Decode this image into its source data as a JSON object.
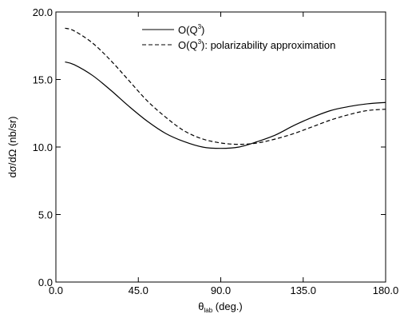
{
  "chart_data": {
    "type": "line",
    "xlabel_main": "θ",
    "xlabel_sub": "lab",
    "xlabel_rest": " (deg.)",
    "ylabel": "dσ/dΩ (nb/sr)",
    "xlim": [
      0,
      180
    ],
    "ylim": [
      0,
      20
    ],
    "x_ticks": [
      0,
      45,
      90,
      135,
      180
    ],
    "x_tick_labels": [
      "0.0",
      "45.0",
      "90.0",
      "135.0",
      "180.0"
    ],
    "y_ticks": [
      0,
      5,
      10,
      15,
      20
    ],
    "y_tick_labels": [
      "0.0",
      "5.0",
      "10.0",
      "15.0",
      "20.0"
    ],
    "grid": false,
    "legend_position": "top-right",
    "series": [
      {
        "name_main": "O(Q",
        "name_sup": "3",
        "name_rest": ")",
        "style": "solid",
        "color": "#000000",
        "x": [
          5,
          10,
          20,
          30,
          40,
          50,
          60,
          70,
          80,
          90,
          100,
          110,
          120,
          130,
          140,
          150,
          160,
          170,
          180
        ],
        "y": [
          16.3,
          16.1,
          15.3,
          14.2,
          13.0,
          11.9,
          11.0,
          10.4,
          10.0,
          9.9,
          10.0,
          10.4,
          10.9,
          11.6,
          12.2,
          12.7,
          13.0,
          13.2,
          13.3
        ]
      },
      {
        "name_main": "O(Q",
        "name_sup": "3",
        "name_rest": "): polarizability approximation",
        "style": "dashed",
        "color": "#000000",
        "x": [
          5,
          10,
          20,
          30,
          40,
          50,
          60,
          70,
          80,
          90,
          100,
          110,
          120,
          130,
          140,
          150,
          160,
          170,
          180
        ],
        "y": [
          18.8,
          18.6,
          17.7,
          16.4,
          14.9,
          13.4,
          12.2,
          11.2,
          10.6,
          10.3,
          10.2,
          10.3,
          10.6,
          11.0,
          11.5,
          12.0,
          12.4,
          12.7,
          12.8
        ]
      }
    ]
  }
}
